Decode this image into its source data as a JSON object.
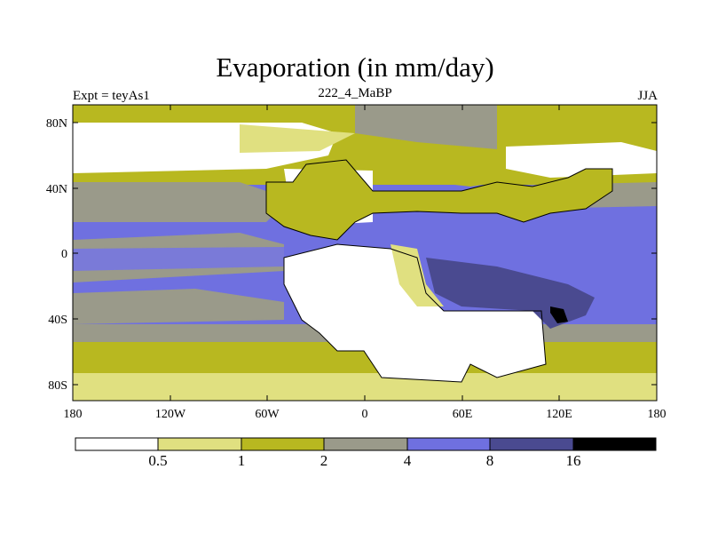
{
  "title": "Evaporation (in mm/day)",
  "subtitle_left": "Expt = teyAs1",
  "subtitle_center": "222_4_MaBP",
  "subtitle_right": "JJA",
  "y_ticks": [
    "80N",
    "40N",
    "0",
    "40S",
    "80S"
  ],
  "x_ticks": [
    "180",
    "120W",
    "60W",
    "0",
    "60E",
    "120E",
    "180"
  ],
  "colorbar": {
    "levels": [
      "0.5",
      "1",
      "2",
      "4",
      "8",
      "16"
    ],
    "colors": [
      "#ffffff",
      "#e0e080",
      "#b8b820",
      "#9a9a8a",
      "#6f70e0",
      "#4a4a90",
      "#000000"
    ]
  },
  "chart_data": {
    "type": "heatmap",
    "title": "Evaporation (in mm/day)",
    "xlim": [
      -180,
      180
    ],
    "ylim": [
      -90,
      90
    ],
    "x_ticks": [
      -180,
      -120,
      -60,
      0,
      60,
      120,
      180
    ],
    "y_ticks": [
      80,
      40,
      0,
      -40,
      -80
    ],
    "contour_levels": [
      0.5,
      1,
      2,
      4,
      8,
      16
    ]
  }
}
